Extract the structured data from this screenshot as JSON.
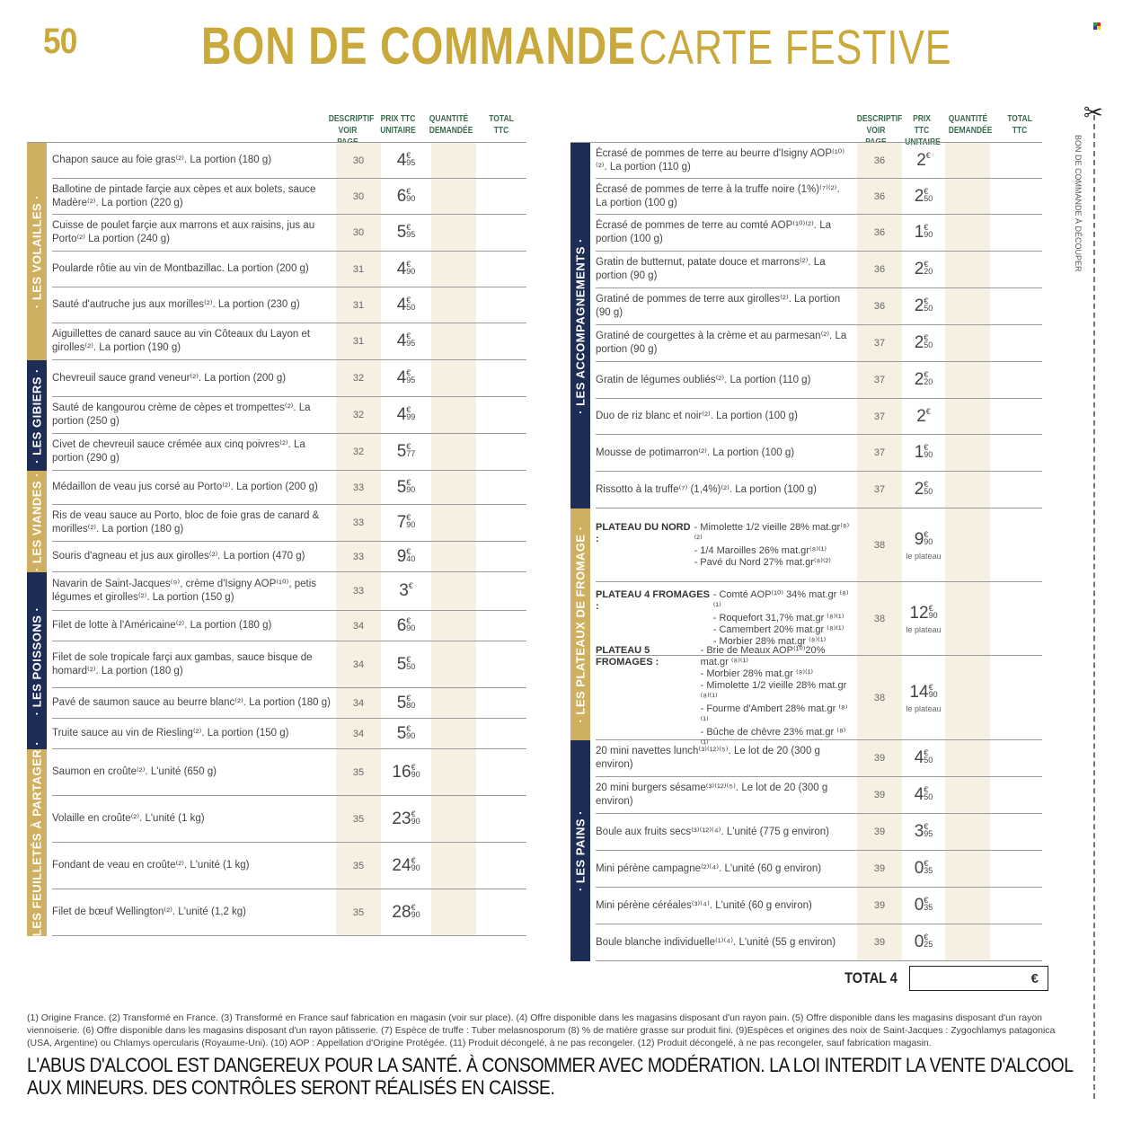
{
  "header": {
    "page_number": "50",
    "title_bold": "BON DE COMMANDE",
    "title_light": "CARTE FESTIVE"
  },
  "columns": {
    "descriptif_1": "DESCRIPTIF",
    "descriptif_2": "VOIR PAGE",
    "prix_1": "PRIX TTC",
    "prix_2": "UNITAIRE",
    "quantite_1": "QUANTITÉ",
    "quantite_2": "DEMANDÉE",
    "total_1": "TOTAL",
    "total_2": "TTC"
  },
  "left_sections": [
    {
      "label": "· LES VOLAILLES ·",
      "color": "gold",
      "items": [
        {
          "desc": "Chapon sauce au foie gras⁽²⁾. La portion (180 g)",
          "page": "30",
          "int": "4",
          "cent": "95"
        },
        {
          "desc": "Ballotine de pintade farçie aux cèpes et aux bolets, sauce Madère⁽²⁾. La portion (220 g)",
          "page": "30",
          "int": "6",
          "cent": "90"
        },
        {
          "desc": "Cuisse de poulet farçie aux marrons et aux raisins, jus au Porto⁽²⁾ La portion (240 g)",
          "page": "30",
          "int": "5",
          "cent": "95"
        },
        {
          "desc": "Poularde rôtie au vin de Montbazillac. La portion (200 g)",
          "page": "31",
          "int": "4",
          "cent": "90"
        },
        {
          "desc": "Sauté d'autruche jus aux morilles⁽²⁾. La portion (230 g)",
          "page": "31",
          "int": "4",
          "cent": "50"
        },
        {
          "desc": "Aiguillettes de canard sauce au vin Côteaux du Layon et girolles⁽²⁾. La portion (190 g)",
          "page": "31",
          "int": "4",
          "cent": "95"
        }
      ]
    },
    {
      "label": "· LES GIBIERS ·",
      "color": "navy",
      "items": [
        {
          "desc": "Chevreuil sauce grand veneur⁽²⁾. La portion (200 g)",
          "page": "32",
          "int": "4",
          "cent": "95"
        },
        {
          "desc": "Sauté de kangourou crème de cèpes et trompettes⁽²⁾. La portion (250 g)",
          "page": "32",
          "int": "4",
          "cent": "99"
        },
        {
          "desc": "Civet de chevreuil sauce crémée aux cinq poivres⁽²⁾. La portion (290 g)",
          "page": "32",
          "int": "5",
          "cent": "77"
        }
      ]
    },
    {
      "label": "· LES VIANDES ·",
      "color": "gold",
      "items": [
        {
          "desc": "Médaillon de veau jus corsé au Porto⁽²⁾. La portion (200 g)",
          "page": "33",
          "int": "5",
          "cent": "90"
        },
        {
          "desc": "Ris de veau sauce au Porto, bloc de foie gras de canard & morilles⁽²⁾. La portion (180 g)",
          "page": "33",
          "int": "7",
          "cent": "90"
        },
        {
          "desc": "Souris d'agneau et jus aux girolles⁽²⁾. La portion (470 g)",
          "page": "33",
          "int": "9",
          "cent": "40"
        }
      ]
    },
    {
      "label": "· LES POISSONS ·",
      "color": "navy",
      "items": [
        {
          "desc": "Navarin de Saint-Jacques⁽⁹⁾, crème d'Isigny AOP⁽¹⁰⁾, petis légumes et girolles⁽²⁾. La portion (150 g)",
          "page": "33",
          "int": "3",
          "cent": ""
        },
        {
          "desc": "Filet de lotte à l'Américaine⁽²⁾. La portion (180 g)",
          "page": "34",
          "int": "6",
          "cent": "90"
        },
        {
          "desc": "Filet de sole tropicale farçi aux gambas, sauce bisque de homard⁽²⁾. La portion (180 g)",
          "page": "34",
          "int": "5",
          "cent": "50"
        },
        {
          "desc": "Pavé de saumon sauce au beurre blanc⁽²⁾. La portion (180 g)",
          "page": "34",
          "int": "5",
          "cent": "80"
        },
        {
          "desc": "Truite sauce au vin de Riesling⁽²⁾. La portion (150 g)",
          "page": "34",
          "int": "5",
          "cent": "90"
        }
      ]
    },
    {
      "label": "· LES FEUILLETÉS À PARTAGER ·",
      "color": "gold",
      "items": [
        {
          "desc": "Saumon en croûte⁽²⁾. L'unité (650 g)",
          "page": "35",
          "int": "16",
          "cent": "90"
        },
        {
          "desc": "Volaille en croûte⁽²⁾. L'unité (1 kg)",
          "page": "35",
          "int": "23",
          "cent": "90"
        },
        {
          "desc": "Fondant de veau en croûte⁽²⁾. L'unité (1 kg)",
          "page": "35",
          "int": "24",
          "cent": "90"
        },
        {
          "desc": "Filet de bœuf Wellington⁽²⁾. L'unité (1,2 kg)",
          "page": "35",
          "int": "28",
          "cent": "90"
        }
      ]
    }
  ],
  "right_sections": [
    {
      "label": "· LES ACCOMPAGNEMENTS ·",
      "color": "navy",
      "items": [
        {
          "desc": "Écrasé de pommes de terre au beurre d'Isigny AOP⁽¹⁰⁾⁽²⁾. La portion (110 g)",
          "page": "36",
          "int": "2",
          "cent": ""
        },
        {
          "desc": "Écrasé de pommes de terre à la truffe noire (1%)⁽⁷⁾⁽²⁾. La portion (100 g)",
          "page": "36",
          "int": "2",
          "cent": "50"
        },
        {
          "desc": "Écrasé de pommes de terre au comté AOP⁽¹⁰⁾⁽²⁾. La portion (100 g)",
          "page": "36",
          "int": "1",
          "cent": "90"
        },
        {
          "desc": "Gratin de butternut, patate douce et marrons⁽²⁾. La portion (90 g)",
          "page": "36",
          "int": "2",
          "cent": "20"
        },
        {
          "desc": "Gratiné de pommes de terre aux girolles⁽²⁾. La portion (90 g)",
          "page": "36",
          "int": "2",
          "cent": "50"
        },
        {
          "desc": "Gratiné de courgettes à la crème et au parmesan⁽²⁾. La portion (90 g)",
          "page": "37",
          "int": "2",
          "cent": "50"
        },
        {
          "desc": "Gratin de légumes oubliés⁽²⁾. La portion (110 g)",
          "page": "37",
          "int": "2",
          "cent": "20"
        },
        {
          "desc": "Duo de riz blanc et noir⁽²⁾. La portion (100 g)",
          "page": "37",
          "int": "2",
          "cent": ""
        },
        {
          "desc": "Mousse de potimarron⁽²⁾. La portion (100 g)",
          "page": "37",
          "int": "1",
          "cent": "90"
        },
        {
          "desc": "Rissotto à la truffe⁽⁷⁾ (1,4%)⁽²⁾. La portion (100 g)",
          "page": "37",
          "int": "2",
          "cent": "50"
        }
      ]
    },
    {
      "label": "· LES PLATEAUX DE FROMAGE ·",
      "color": "gold",
      "plateaux": [
        {
          "title": "PLATEAU DU NORD :",
          "lines": [
            "- Mimolette 1/2 vieille 28% mat.gr⁽⁸⁾⁽²⁾",
            "- 1/4 Maroilles 26% mat.gr⁽⁸⁾⁽¹⁾",
            "- Pavé du Nord 27% mat.gr⁽⁸⁾⁽²⁾"
          ],
          "page": "38",
          "int": "9",
          "cent": "90",
          "per": "le plateau"
        },
        {
          "title": "PLATEAU 4 FROMAGES :",
          "lines": [
            "- Comté AOP⁽¹⁰⁾ 34% mat.gr ⁽⁸⁾⁽¹⁾",
            "- Roquefort 31,7% mat.gr ⁽⁸⁾⁽¹⁾",
            "- Camembert 20% mat.gr ⁽⁸⁾⁽¹⁾",
            "- Morbier 28% mat.gr ⁽⁸⁾⁽¹⁾"
          ],
          "page": "38",
          "int": "12",
          "cent": "90",
          "per": "le plateau"
        },
        {
          "title": "PLATEAU 5 FROMAGES :",
          "lines": [
            "- Brie de Meaux AOP⁽¹⁰⁾20% mat.gr ⁽⁸⁾⁽¹⁾",
            "- Morbier 28% mat.gr ⁽⁸⁾⁽¹⁾",
            "- Mimolette 1/2 vieille 28% mat.gr ⁽⁸⁾⁽¹⁾",
            "- Fourme d'Ambert 28% mat.gr ⁽⁸⁾⁽¹⁾",
            "- Bûche de chèvre 23% mat.gr ⁽⁸⁾⁽¹⁾"
          ],
          "page": "38",
          "int": "14",
          "cent": "90",
          "per": "le plateau"
        }
      ]
    },
    {
      "label": "· LES PAINS ·",
      "color": "navy",
      "items": [
        {
          "desc": "20 mini navettes lunch⁽³⁾⁽¹²⁾⁽⁵⁾. Le lot de 20 (300 g environ)",
          "page": "39",
          "int": "4",
          "cent": "50"
        },
        {
          "desc": "20 mini burgers sésame⁽³⁾⁽¹²⁾⁽⁵⁾. Le lot de 20 (300 g environ)",
          "page": "39",
          "int": "4",
          "cent": "50"
        },
        {
          "desc": "Boule aux fruits secs⁽³⁾⁽¹²⁾⁽⁴⁾. L'unité (775 g environ)",
          "page": "39",
          "int": "3",
          "cent": "95"
        },
        {
          "desc": "Mini pérène campagne⁽²⁾⁽⁴⁾. L'unité (60 g environ)",
          "page": "39",
          "int": "0",
          "cent": "35"
        },
        {
          "desc": "Mini pérène céréales⁽³⁾⁽⁴⁾. L'unité (60 g environ)",
          "page": "39",
          "int": "0",
          "cent": "35"
        },
        {
          "desc": "Boule blanche individuelle⁽¹⁾⁽⁴⁾. L'unité (55 g environ)",
          "page": "39",
          "int": "0",
          "cent": "25"
        }
      ]
    }
  ],
  "currency": "€",
  "total": {
    "label": "TOTAL 4",
    "value": "",
    "currency": "€"
  },
  "cut_line": {
    "label": "BON DE COMMANDE À DÉCOUPER",
    "icon": "scissors-icon"
  },
  "footnotes": "(1) Origine France. (2) Transformé en France. (3) Transformé en France sauf fabrication en magasin (voir sur place). (4) Offre disponible dans les magasins disposant d'un rayon pain. (5) Offre disponible dans les magasins disposant d'un rayon viennoiserie. (6) Offre disponible dans les magasins disposant d'un rayon pâtisserie. (7) Espèce de truffe : Tuber melasnosporum (8) % de matière grasse sur produit fini. (9)Espèces et origines des noix de Saint-Jacques : Zygochlamys patagonica (USA, Argentine) ou Chlamys opercularis (Royaume-Uni). (10) AOP : Appellation d'Origine Protégée. (11) Produit décongelé, à ne pas recongeler. (12) Produit décongelé, à ne pas recongeler, sauf fabrication magasin.",
  "warning_line1": "L'ABUS D'ALCOOL EST DANGEREUX POUR LA SANTÉ. À CONSOMMER AVEC MODÉRATION. LA LOI INTERDIT LA VENTE D'ALCOOL",
  "warning_line2": "AUX MINEURS. DES CONTRÔLES SERONT RÉALISÉS EN CAISSE.",
  "colors": {
    "gold": "#cfb060",
    "title_gold": "#c9a83c",
    "navy": "#1d2d55",
    "header_green": "#3b6b4f",
    "cell_beige": "#f5f0e2"
  }
}
